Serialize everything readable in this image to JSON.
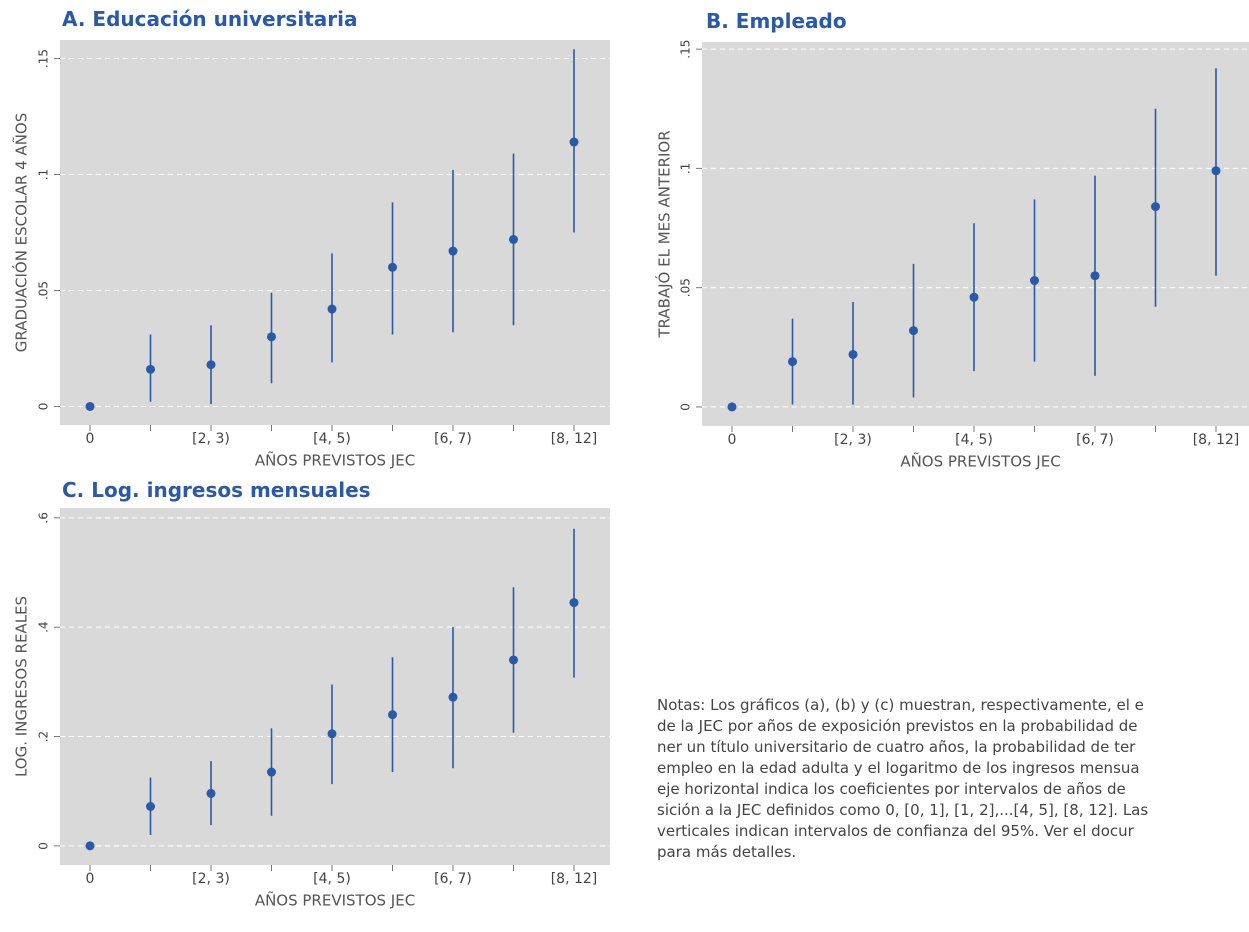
{
  "chart_data": [
    {
      "type": "errorbar",
      "title": "A. Educación universitaria",
      "xlabel": "AÑOS PREVISTOS JEC",
      "ylabel": "GRADUACIÓN ESCOLAR 4 AÑOS",
      "categories": [
        "0",
        null,
        "[2, 3)",
        null,
        "[4, 5)",
        null,
        "[6, 7)",
        null,
        "[8, 12]"
      ],
      "series": [
        {
          "color": "#2b59a6",
          "values": [
            0,
            0.016,
            0.018,
            0.03,
            0.042,
            0.06,
            0.067,
            0.072,
            0.114
          ],
          "lower": [
            0,
            0.002,
            0.001,
            0.01,
            0.019,
            0.031,
            0.032,
            0.035,
            0.075
          ],
          "upper": [
            0,
            0.031,
            0.035,
            0.049,
            0.066,
            0.088,
            0.102,
            0.109,
            0.154
          ]
        }
      ],
      "ylim": [
        -0.008,
        0.158
      ],
      "yticks": [
        0,
        {
          "value": 0.05,
          "label": ".05"
        },
        {
          "value": 0.1,
          "label": ".1"
        },
        {
          "value": 0.15,
          "label": ".15"
        }
      ],
      "grid": true
    },
    {
      "type": "errorbar",
      "title": "B. Empleado",
      "xlabel": "AÑOS PREVISTOS JEC",
      "ylabel": "TRABAJÓ EL MES ANTERIOR",
      "categories": [
        "0",
        null,
        "[2, 3)",
        null,
        "[4, 5)",
        null,
        "[6, 7)",
        null,
        "[8, 12]"
      ],
      "series": [
        {
          "color": "#2b59a6",
          "values": [
            0,
            0.019,
            0.022,
            0.032,
            0.046,
            0.053,
            0.055,
            0.084,
            0.099
          ],
          "lower": [
            0,
            0.001,
            0.001,
            0.004,
            0.015,
            0.019,
            0.013,
            0.042,
            0.055
          ],
          "upper": [
            0,
            0.037,
            0.044,
            0.06,
            0.077,
            0.087,
            0.097,
            0.125,
            0.142
          ]
        }
      ],
      "ylim": [
        -0.008,
        0.153
      ],
      "yticks": [
        0,
        {
          "value": 0.05,
          "label": ".05"
        },
        {
          "value": 0.1,
          "label": ".1"
        },
        {
          "value": 0.15,
          "label": ".15"
        }
      ],
      "grid": true
    },
    {
      "type": "errorbar",
      "title": "C. Log. ingresos mensuales",
      "xlabel": "AÑOS PREVISTOS JEC",
      "ylabel": "LOG. INGRESOS REALES",
      "categories": [
        "0",
        null,
        "[2, 3)",
        null,
        "[4, 5)",
        null,
        "[6, 7)",
        null,
        "[8, 12]"
      ],
      "series": [
        {
          "color": "#2b59a6",
          "values": [
            0,
            0.072,
            0.096,
            0.135,
            0.205,
            0.24,
            0.272,
            0.34,
            0.445
          ],
          "lower": [
            0,
            0.02,
            0.038,
            0.055,
            0.113,
            0.135,
            0.142,
            0.207,
            0.308
          ],
          "upper": [
            0,
            0.125,
            0.155,
            0.215,
            0.295,
            0.345,
            0.4,
            0.473,
            0.58
          ]
        }
      ],
      "ylim": [
        -0.035,
        0.618
      ],
      "yticks": [
        0,
        {
          "value": 0.2,
          "label": ".2"
        },
        {
          "value": 0.4,
          "label": ".4"
        },
        {
          "value": 0.6,
          "label": ".6"
        }
      ],
      "grid": true
    }
  ],
  "note": [
    "Notas: Los gráficos (a), (b) y (c) muestran, respectivamente, el e",
    "de la JEC por años de exposición previstos en la probabilidad de",
    "ner un título universitario de cuatro años, la probabilidad de ter",
    "empleo en la edad adulta y el logaritmo de los ingresos mensua",
    "eje horizontal indica los coeficientes por intervalos de años de",
    "sición a la JEC definidos como 0, [0, 1], [1, 2],...[4, 5], [8, 12]. Las",
    "verticales indican intervalos de confianza del 95%. Ver el docur",
    "para más detalles."
  ]
}
